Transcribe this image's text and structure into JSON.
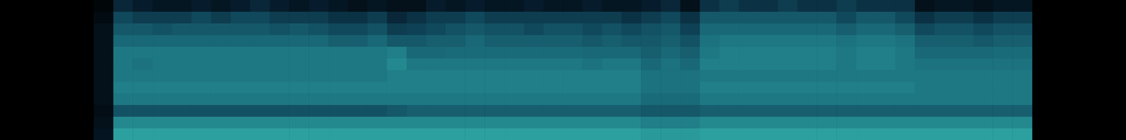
{
  "chart_data": {
    "type": "heatmap",
    "tick_labels": false,
    "grid": false,
    "color_range": [
      0,
      1
    ],
    "cells": [
      [
        0.05,
        0.3,
        0.25,
        0.2,
        0.2,
        0.25,
        0.2,
        0.25,
        0.3,
        0.25,
        0.2,
        0.25,
        0.2,
        0.15,
        0.2,
        0.15,
        0.15,
        0.25,
        0.2,
        0.25,
        0.2,
        0.2,
        0.25,
        0.2,
        0.2,
        0.25,
        0.2,
        0.2,
        0.25,
        0.3,
        0.15,
        0.35,
        0.4,
        0.35,
        0.35,
        0.4,
        0.35,
        0.35,
        0.4,
        0.35,
        0.35,
        0.35,
        0.15,
        0.2,
        0.2,
        0.15,
        0.2,
        0.2
      ],
      [
        0.1,
        0.45,
        0.4,
        0.4,
        0.4,
        0.45,
        0.4,
        0.45,
        0.45,
        0.4,
        0.4,
        0.4,
        0.35,
        0.35,
        0.4,
        0.3,
        0.35,
        0.4,
        0.4,
        0.45,
        0.4,
        0.4,
        0.4,
        0.4,
        0.4,
        0.4,
        0.4,
        0.35,
        0.4,
        0.45,
        0.35,
        0.5,
        0.5,
        0.5,
        0.5,
        0.5,
        0.5,
        0.5,
        0.45,
        0.5,
        0.5,
        0.45,
        0.35,
        0.4,
        0.4,
        0.35,
        0.4,
        0.4
      ],
      [
        0.15,
        0.5,
        0.5,
        0.48,
        0.5,
        0.5,
        0.5,
        0.5,
        0.5,
        0.48,
        0.5,
        0.48,
        0.45,
        0.45,
        0.48,
        0.4,
        0.42,
        0.45,
        0.48,
        0.5,
        0.48,
        0.48,
        0.45,
        0.48,
        0.48,
        0.45,
        0.48,
        0.45,
        0.48,
        0.5,
        0.42,
        0.55,
        0.55,
        0.55,
        0.55,
        0.55,
        0.55,
        0.55,
        0.52,
        0.55,
        0.55,
        0.52,
        0.45,
        0.48,
        0.48,
        0.45,
        0.48,
        0.48
      ],
      [
        0.15,
        0.55,
        0.55,
        0.55,
        0.55,
        0.55,
        0.55,
        0.55,
        0.55,
        0.55,
        0.55,
        0.55,
        0.52,
        0.52,
        0.55,
        0.5,
        0.5,
        0.52,
        0.52,
        0.55,
        0.52,
        0.52,
        0.52,
        0.52,
        0.52,
        0.5,
        0.52,
        0.5,
        0.5,
        0.52,
        0.48,
        0.58,
        0.6,
        0.6,
        0.6,
        0.6,
        0.6,
        0.6,
        0.58,
        0.6,
        0.6,
        0.58,
        0.52,
        0.52,
        0.52,
        0.5,
        0.52,
        0.52
      ],
      [
        0.15,
        0.6,
        0.6,
        0.6,
        0.6,
        0.6,
        0.6,
        0.6,
        0.6,
        0.6,
        0.6,
        0.6,
        0.6,
        0.6,
        0.6,
        0.62,
        0.55,
        0.55,
        0.56,
        0.56,
        0.56,
        0.56,
        0.56,
        0.56,
        0.56,
        0.55,
        0.55,
        0.55,
        0.52,
        0.55,
        0.52,
        0.6,
        0.62,
        0.62,
        0.62,
        0.62,
        0.62,
        0.62,
        0.6,
        0.62,
        0.62,
        0.6,
        0.55,
        0.55,
        0.55,
        0.55,
        0.56,
        0.56
      ],
      [
        0.15,
        0.6,
        0.58,
        0.6,
        0.6,
        0.6,
        0.6,
        0.6,
        0.6,
        0.6,
        0.6,
        0.6,
        0.6,
        0.6,
        0.6,
        0.65,
        0.6,
        0.6,
        0.6,
        0.6,
        0.6,
        0.6,
        0.6,
        0.6,
        0.6,
        0.58,
        0.6,
        0.6,
        0.55,
        0.58,
        0.55,
        0.62,
        0.62,
        0.62,
        0.62,
        0.62,
        0.62,
        0.62,
        0.6,
        0.62,
        0.62,
        0.6,
        0.58,
        0.58,
        0.58,
        0.58,
        0.58,
        0.58
      ],
      [
        0.15,
        0.6,
        0.6,
        0.6,
        0.6,
        0.6,
        0.6,
        0.6,
        0.6,
        0.6,
        0.6,
        0.6,
        0.6,
        0.6,
        0.6,
        0.62,
        0.62,
        0.62,
        0.62,
        0.62,
        0.62,
        0.62,
        0.62,
        0.62,
        0.62,
        0.62,
        0.62,
        0.62,
        0.58,
        0.58,
        0.58,
        0.6,
        0.6,
        0.6,
        0.6,
        0.6,
        0.6,
        0.6,
        0.6,
        0.6,
        0.6,
        0.6,
        0.6,
        0.6,
        0.6,
        0.6,
        0.6,
        0.6
      ],
      [
        0.15,
        0.62,
        0.62,
        0.62,
        0.62,
        0.62,
        0.62,
        0.62,
        0.62,
        0.62,
        0.62,
        0.62,
        0.62,
        0.62,
        0.62,
        0.62,
        0.62,
        0.62,
        0.62,
        0.62,
        0.62,
        0.62,
        0.62,
        0.62,
        0.62,
        0.62,
        0.62,
        0.62,
        0.58,
        0.58,
        0.58,
        0.62,
        0.62,
        0.62,
        0.62,
        0.62,
        0.62,
        0.62,
        0.62,
        0.62,
        0.62,
        0.62,
        0.6,
        0.6,
        0.6,
        0.6,
        0.6,
        0.6
      ],
      [
        0.15,
        0.6,
        0.6,
        0.6,
        0.6,
        0.6,
        0.6,
        0.6,
        0.6,
        0.6,
        0.6,
        0.6,
        0.6,
        0.6,
        0.6,
        0.6,
        0.6,
        0.6,
        0.6,
        0.6,
        0.6,
        0.6,
        0.6,
        0.6,
        0.6,
        0.6,
        0.6,
        0.6,
        0.56,
        0.56,
        0.56,
        0.6,
        0.6,
        0.6,
        0.6,
        0.6,
        0.6,
        0.6,
        0.6,
        0.6,
        0.6,
        0.6,
        0.6,
        0.6,
        0.6,
        0.6,
        0.6,
        0.6
      ],
      [
        0.12,
        0.48,
        0.48,
        0.48,
        0.48,
        0.48,
        0.48,
        0.48,
        0.48,
        0.48,
        0.48,
        0.48,
        0.48,
        0.48,
        0.48,
        0.5,
        0.52,
        0.52,
        0.52,
        0.52,
        0.52,
        0.52,
        0.52,
        0.52,
        0.52,
        0.52,
        0.52,
        0.52,
        0.5,
        0.5,
        0.5,
        0.52,
        0.52,
        0.52,
        0.52,
        0.52,
        0.52,
        0.52,
        0.52,
        0.52,
        0.52,
        0.52,
        0.52,
        0.52,
        0.52,
        0.52,
        0.52,
        0.52
      ],
      [
        0.15,
        0.65,
        0.65,
        0.65,
        0.65,
        0.65,
        0.65,
        0.65,
        0.65,
        0.65,
        0.65,
        0.65,
        0.65,
        0.65,
        0.65,
        0.65,
        0.65,
        0.65,
        0.65,
        0.65,
        0.65,
        0.65,
        0.65,
        0.65,
        0.65,
        0.65,
        0.65,
        0.65,
        0.62,
        0.62,
        0.62,
        0.65,
        0.65,
        0.65,
        0.65,
        0.65,
        0.65,
        0.65,
        0.65,
        0.65,
        0.65,
        0.65,
        0.65,
        0.65,
        0.65,
        0.65,
        0.65,
        0.65
      ],
      [
        0.18,
        0.72,
        0.72,
        0.72,
        0.72,
        0.72,
        0.72,
        0.72,
        0.72,
        0.72,
        0.72,
        0.72,
        0.72,
        0.72,
        0.72,
        0.72,
        0.72,
        0.72,
        0.72,
        0.72,
        0.72,
        0.72,
        0.72,
        0.72,
        0.72,
        0.72,
        0.72,
        0.72,
        0.7,
        0.7,
        0.7,
        0.72,
        0.72,
        0.72,
        0.72,
        0.72,
        0.72,
        0.72,
        0.72,
        0.72,
        0.72,
        0.72,
        0.72,
        0.72,
        0.72,
        0.72,
        0.72,
        0.72
      ]
    ]
  }
}
